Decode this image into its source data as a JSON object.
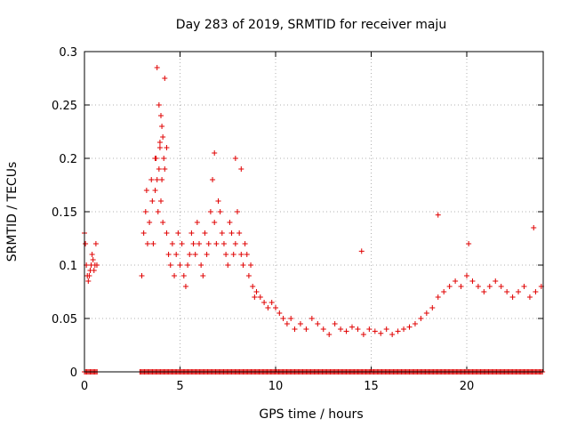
{
  "chart_data": {
    "type": "scatter",
    "title": "Day 283 of 2019, SRMTID for receiver maju",
    "xlabel": "GPS time / hours",
    "ylabel": "SRMTID / TECUs",
    "xlim": [
      0,
      24
    ],
    "ylim": [
      0,
      0.3
    ],
    "xticks": [
      0,
      5,
      10,
      15,
      20
    ],
    "xtick_labels": [
      "0",
      "5",
      "10",
      "15",
      "20"
    ],
    "yticks": [
      0,
      0.05,
      0.1,
      0.15,
      0.2,
      0.25,
      0.3
    ],
    "ytick_labels": [
      "0",
      "0.05",
      "0.1",
      "0.15",
      "0.2",
      "0.25",
      "0.3"
    ],
    "grid": true,
    "marker": "plus",
    "color": "#e00000",
    "series": [
      {
        "name": "SRMTID",
        "x": [
          0.0,
          0.05,
          0.1,
          0.15,
          0.2,
          0.25,
          0.3,
          0.35,
          0.4,
          0.45,
          0.5,
          0.55,
          0.6,
          0.65,
          3.0,
          3.1,
          3.2,
          3.25,
          3.3,
          3.4,
          3.5,
          3.55,
          3.6,
          3.7,
          3.75,
          3.8,
          3.85,
          3.9,
          3.95,
          4.0,
          4.05,
          4.1,
          4.15,
          4.2,
          4.3,
          4.4,
          4.5,
          4.6,
          4.7,
          4.8,
          4.9,
          5.0,
          5.1,
          5.2,
          5.3,
          5.4,
          5.5,
          5.6,
          5.7,
          5.8,
          5.9,
          6.0,
          6.1,
          6.2,
          6.3,
          6.4,
          6.5,
          6.6,
          6.7,
          6.8,
          6.9,
          7.0,
          7.1,
          7.2,
          7.3,
          7.4,
          7.5,
          7.6,
          7.7,
          7.8,
          7.9,
          8.0,
          8.1,
          8.2,
          8.3,
          8.4,
          8.5,
          8.6,
          8.7,
          8.8,
          8.9,
          9.0,
          9.2,
          9.4,
          9.6,
          9.8,
          10.0,
          10.2,
          10.4,
          10.6,
          10.8,
          11.0,
          11.3,
          11.6,
          11.9,
          12.2,
          12.5,
          12.8,
          13.1,
          13.4,
          13.7,
          14.0,
          14.3,
          14.6,
          14.9,
          15.2,
          15.5,
          15.8,
          16.1,
          16.4,
          16.7,
          17.0,
          17.3,
          17.6,
          17.9,
          18.2,
          18.5,
          18.8,
          19.1,
          19.4,
          19.7,
          20.0,
          20.3,
          20.6,
          20.9,
          21.2,
          21.5,
          21.8,
          22.1,
          22.4,
          22.7,
          23.0,
          23.3,
          23.6,
          23.9,
          3.8,
          3.9,
          4.0,
          4.1,
          4.2,
          3.95,
          4.05,
          3.7,
          4.3,
          6.8,
          7.9,
          8.2,
          18.5,
          14.5,
          20.1,
          23.5
        ],
        "y": [
          0.13,
          0.12,
          0.1,
          0.09,
          0.085,
          0.09,
          0.095,
          0.1,
          0.11,
          0.105,
          0.095,
          0.1,
          0.12,
          0.1,
          0.09,
          0.13,
          0.15,
          0.17,
          0.12,
          0.14,
          0.18,
          0.16,
          0.12,
          0.17,
          0.2,
          0.18,
          0.15,
          0.19,
          0.21,
          0.16,
          0.18,
          0.14,
          0.2,
          0.19,
          0.13,
          0.11,
          0.1,
          0.12,
          0.09,
          0.11,
          0.13,
          0.1,
          0.12,
          0.09,
          0.08,
          0.1,
          0.11,
          0.13,
          0.12,
          0.11,
          0.14,
          0.12,
          0.1,
          0.09,
          0.13,
          0.11,
          0.12,
          0.15,
          0.18,
          0.14,
          0.12,
          0.16,
          0.15,
          0.13,
          0.12,
          0.11,
          0.1,
          0.14,
          0.13,
          0.11,
          0.12,
          0.15,
          0.13,
          0.11,
          0.1,
          0.12,
          0.11,
          0.09,
          0.1,
          0.08,
          0.07,
          0.075,
          0.07,
          0.065,
          0.06,
          0.065,
          0.06,
          0.055,
          0.05,
          0.045,
          0.05,
          0.04,
          0.045,
          0.04,
          0.05,
          0.045,
          0.04,
          0.035,
          0.045,
          0.04,
          0.038,
          0.042,
          0.04,
          0.035,
          0.04,
          0.038,
          0.036,
          0.04,
          0.035,
          0.038,
          0.04,
          0.042,
          0.045,
          0.05,
          0.055,
          0.06,
          0.07,
          0.075,
          0.08,
          0.085,
          0.08,
          0.09,
          0.085,
          0.08,
          0.075,
          0.08,
          0.085,
          0.08,
          0.075,
          0.07,
          0.075,
          0.08,
          0.07,
          0.075,
          0.08,
          0.285,
          0.25,
          0.24,
          0.22,
          0.275,
          0.215,
          0.23,
          0.2,
          0.21,
          0.205,
          0.2,
          0.19,
          0.147,
          0.113,
          0.12,
          0.135
        ]
      }
    ],
    "zero_flag_ranges": [
      [
        0.0,
        0.7
      ],
      [
        2.9,
        24.0
      ]
    ]
  }
}
